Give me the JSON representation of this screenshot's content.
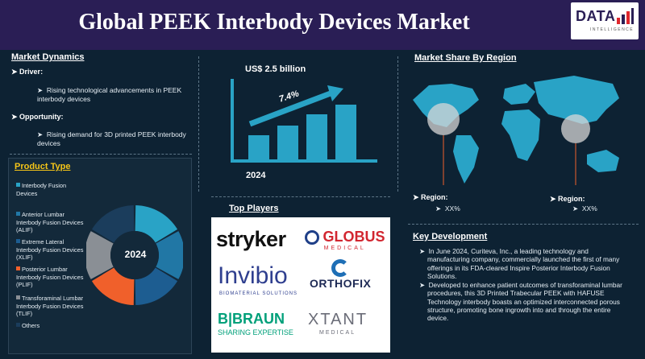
{
  "header": {
    "title": "Global PEEK Interbody Devices Market"
  },
  "logo": {
    "main": "DATA",
    "sub": "INTELLIGENCE"
  },
  "market_dynamics": {
    "heading": "Market Dynamics",
    "driver_label": "Driver:",
    "driver_text": "Rising technological advancements in PEEK interbody devices",
    "opportunity_label": "Opportunity:",
    "opportunity_text": "Rising demand for 3D printed PEEK interbody devices"
  },
  "growth": {
    "value_label": "US$ 2.5 billion",
    "cagr": "7.4%",
    "year": "2024"
  },
  "product_type": {
    "heading": "Product Type",
    "center_label": "2024",
    "items": [
      {
        "label": "Interbody Fusion Devices",
        "color": "#29a3c6"
      },
      {
        "label": "Anterior Lumbar Interbody Fusion Devices (ALIF)",
        "color": "#2177a5"
      },
      {
        "label": "Extreme Lateral Interbody Fusion Devices (XLIF)",
        "color": "#1d5d91"
      },
      {
        "label": "Posterior Lumbar Interbody Fusion Devices (PLIF)",
        "color": "#f0602b"
      },
      {
        "label": "Transforaminal Lumbar Interbody Fusion Devices (TLIF)",
        "color": "#8a8f95"
      },
      {
        "label": "Others",
        "color": "#1b3d5c"
      }
    ]
  },
  "top_players": {
    "heading": "Top Players",
    "logos": [
      "stryker",
      "GLOBUS",
      "MEDICAL",
      "Invibio",
      "BIOMATERIAL SOLUTIONS",
      "ORTHOFIX",
      "B|BRAUN",
      "SHARING EXPERTISE",
      "XTANT",
      "MEDICAL"
    ]
  },
  "market_share": {
    "heading": "Market Share By Region",
    "region_left_label": "Region:",
    "region_left_value": "XX%",
    "region_right_label": "Region:",
    "region_right_value": "XX%"
  },
  "key_development": {
    "heading": "Key Development",
    "points": [
      "In June 2024, Curiteva, Inc., a leading technology and manufacturing company, commercially launched the first of many offerings in its FDA-cleared Inspire Posterior Interbody Fusion Solutions.",
      "Developed to enhance patient outcomes of transforaminal lumbar procedures, this 3D Printed Trabecular PEEK with HAFUSE Technology interbody boasts an optimized interconnected porous structure, promoting bone ingrowth into and through the entire device."
    ]
  },
  "colors": {
    "header_bg": "#2a1e55",
    "page_bg": "#0d2233",
    "bar": "#29a3c6",
    "globe": "#29a3c6"
  }
}
